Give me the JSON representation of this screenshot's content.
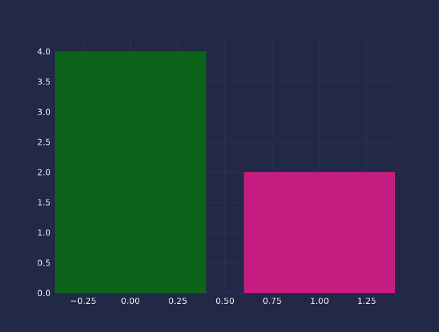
{
  "chart_data": {
    "type": "bar",
    "x": [
      0,
      1
    ],
    "values": [
      4.0,
      2.0
    ],
    "bar_width": 0.8,
    "bar_colors": [
      "#0b6419",
      "#c41d7f"
    ],
    "xlim": [
      -0.4,
      1.4
    ],
    "ylim": [
      0,
      4.0
    ],
    "xticks": [
      -0.25,
      0.0,
      0.25,
      0.5,
      0.75,
      1.0,
      1.25
    ],
    "xtick_labels": [
      "−0.25",
      "0.00",
      "0.25",
      "0.50",
      "0.75",
      "1.00",
      "1.25"
    ],
    "yticks": [
      0.0,
      0.5,
      1.0,
      1.5,
      2.0,
      2.5,
      3.0,
      3.5,
      4.0
    ],
    "ytick_labels": [
      "0.0",
      "0.5",
      "1.0",
      "1.5",
      "2.0",
      "2.5",
      "3.0",
      "3.5",
      "4.0"
    ],
    "grid": true,
    "title": "",
    "xlabel": "",
    "ylabel": ""
  },
  "theme": {
    "background": "#212946",
    "grid": "#2A3459",
    "tick_label": "#E8E8F0"
  }
}
